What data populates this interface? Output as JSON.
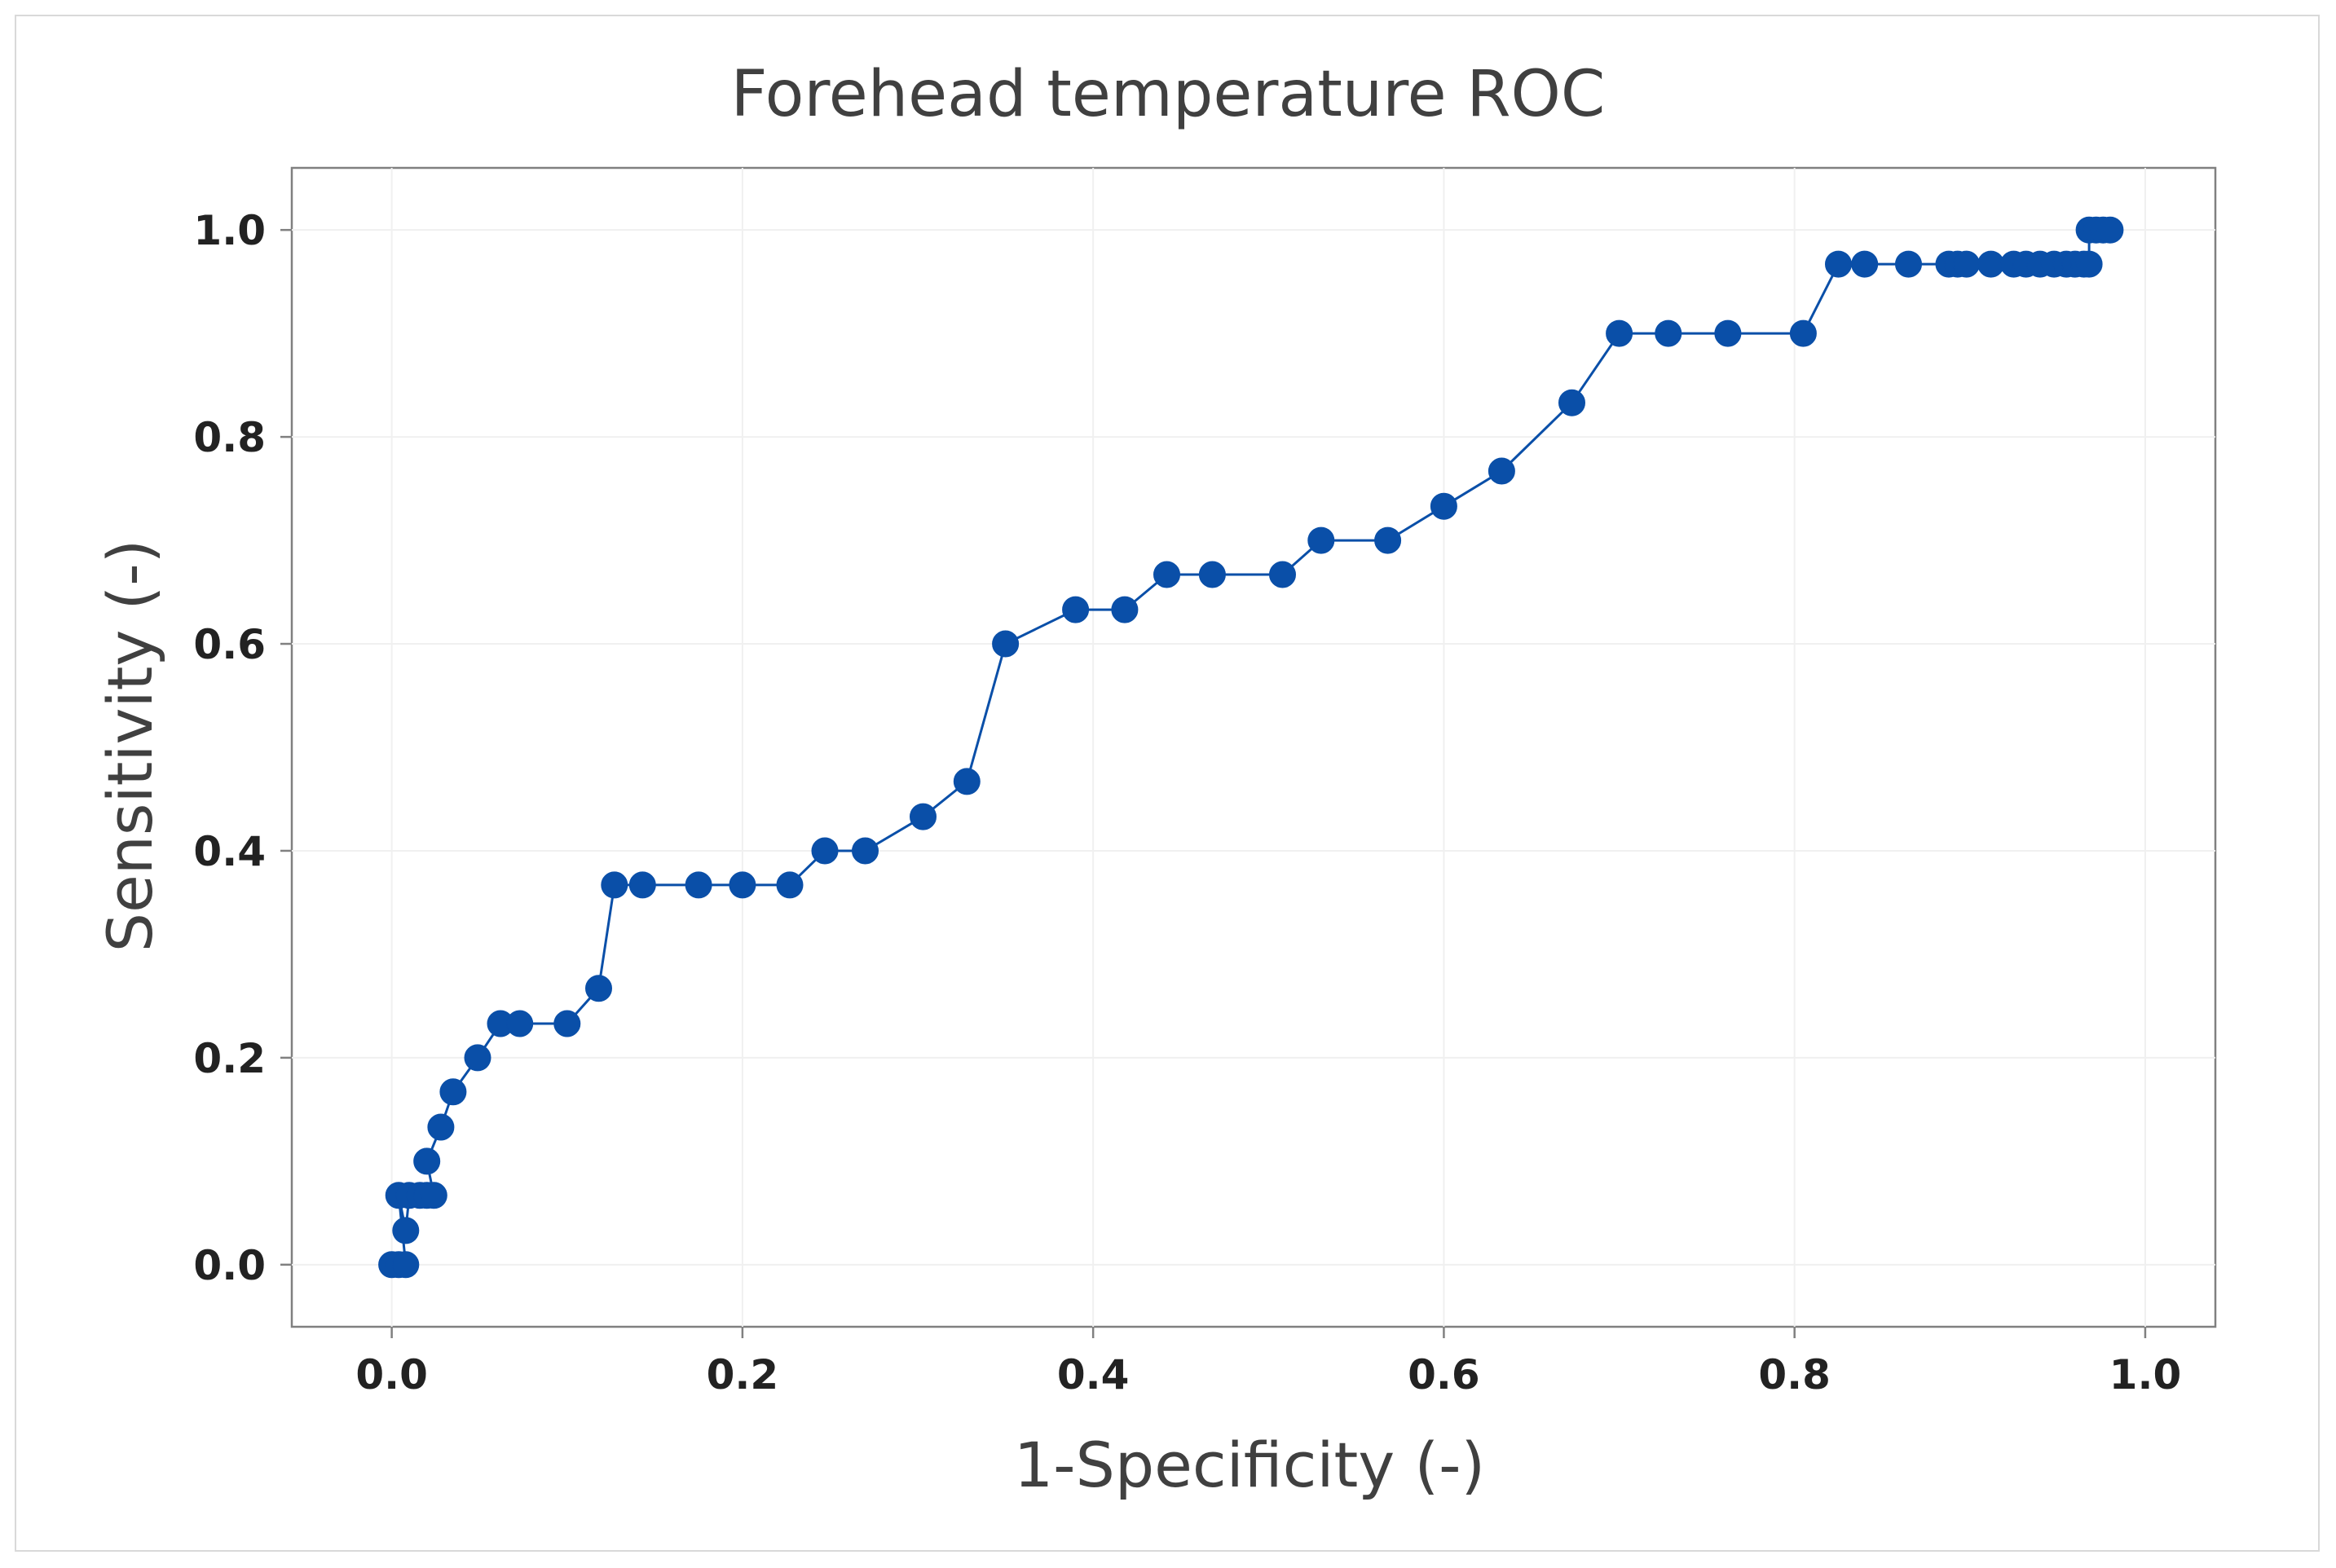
{
  "chart_data": {
    "type": "line",
    "title": "Forehead temperature ROC",
    "xlabel": "1-Specificity (-)",
    "ylabel": "Sensitivity (-)",
    "xlim": [
      -0.057,
      1.04
    ],
    "ylim": [
      -0.06,
      1.06
    ],
    "xticks": [
      0.0,
      0.2,
      0.4,
      0.6,
      0.8,
      1.0
    ],
    "xtick_labels": [
      "0.0",
      "0.2",
      "0.4",
      "0.6",
      "0.8",
      "1.0"
    ],
    "yticks": [
      0.0,
      0.2,
      0.4,
      0.6,
      0.8,
      1.0
    ],
    "ytick_labels": [
      "0.0",
      "0.2",
      "0.4",
      "0.6",
      "0.8",
      "1.0"
    ],
    "grid": true,
    "series_color": "#0a4fa8",
    "series": [
      {
        "name": "ROC",
        "points": [
          [
            0.0,
            0.0
          ],
          [
            0.004,
            0.0
          ],
          [
            0.008,
            0.0
          ],
          [
            0.004,
            0.067
          ],
          [
            0.008,
            0.033
          ],
          [
            0.01,
            0.067
          ],
          [
            0.016,
            0.067
          ],
          [
            0.02,
            0.067
          ],
          [
            0.024,
            0.067
          ],
          [
            0.02,
            0.1
          ],
          [
            0.028,
            0.133
          ],
          [
            0.035,
            0.167
          ],
          [
            0.049,
            0.2
          ],
          [
            0.062,
            0.233
          ],
          [
            0.073,
            0.233
          ],
          [
            0.1,
            0.233
          ],
          [
            0.118,
            0.267
          ],
          [
            0.127,
            0.367
          ],
          [
            0.143,
            0.367
          ],
          [
            0.175,
            0.367
          ],
          [
            0.2,
            0.367
          ],
          [
            0.227,
            0.367
          ],
          [
            0.247,
            0.4
          ],
          [
            0.27,
            0.4
          ],
          [
            0.303,
            0.433
          ],
          [
            0.328,
            0.467
          ],
          [
            0.35,
            0.6
          ],
          [
            0.39,
            0.633
          ],
          [
            0.418,
            0.633
          ],
          [
            0.442,
            0.667
          ],
          [
            0.468,
            0.667
          ],
          [
            0.508,
            0.667
          ],
          [
            0.53,
            0.7
          ],
          [
            0.568,
            0.7
          ],
          [
            0.6,
            0.733
          ],
          [
            0.633,
            0.767
          ],
          [
            0.673,
            0.833
          ],
          [
            0.7,
            0.9
          ],
          [
            0.728,
            0.9
          ],
          [
            0.762,
            0.9
          ],
          [
            0.805,
            0.9
          ],
          [
            0.825,
            0.967
          ],
          [
            0.84,
            0.967
          ],
          [
            0.865,
            0.967
          ],
          [
            0.888,
            0.967
          ],
          [
            0.893,
            0.967
          ],
          [
            0.898,
            0.967
          ],
          [
            0.912,
            0.967
          ],
          [
            0.925,
            0.967
          ],
          [
            0.932,
            0.967
          ],
          [
            0.94,
            0.967
          ],
          [
            0.948,
            0.967
          ],
          [
            0.955,
            0.967
          ],
          [
            0.96,
            0.967
          ],
          [
            0.965,
            0.967
          ],
          [
            0.968,
            0.967
          ],
          [
            0.968,
            1.0
          ],
          [
            0.972,
            1.0
          ],
          [
            0.976,
            1.0
          ],
          [
            0.98,
            1.0
          ]
        ]
      }
    ]
  }
}
